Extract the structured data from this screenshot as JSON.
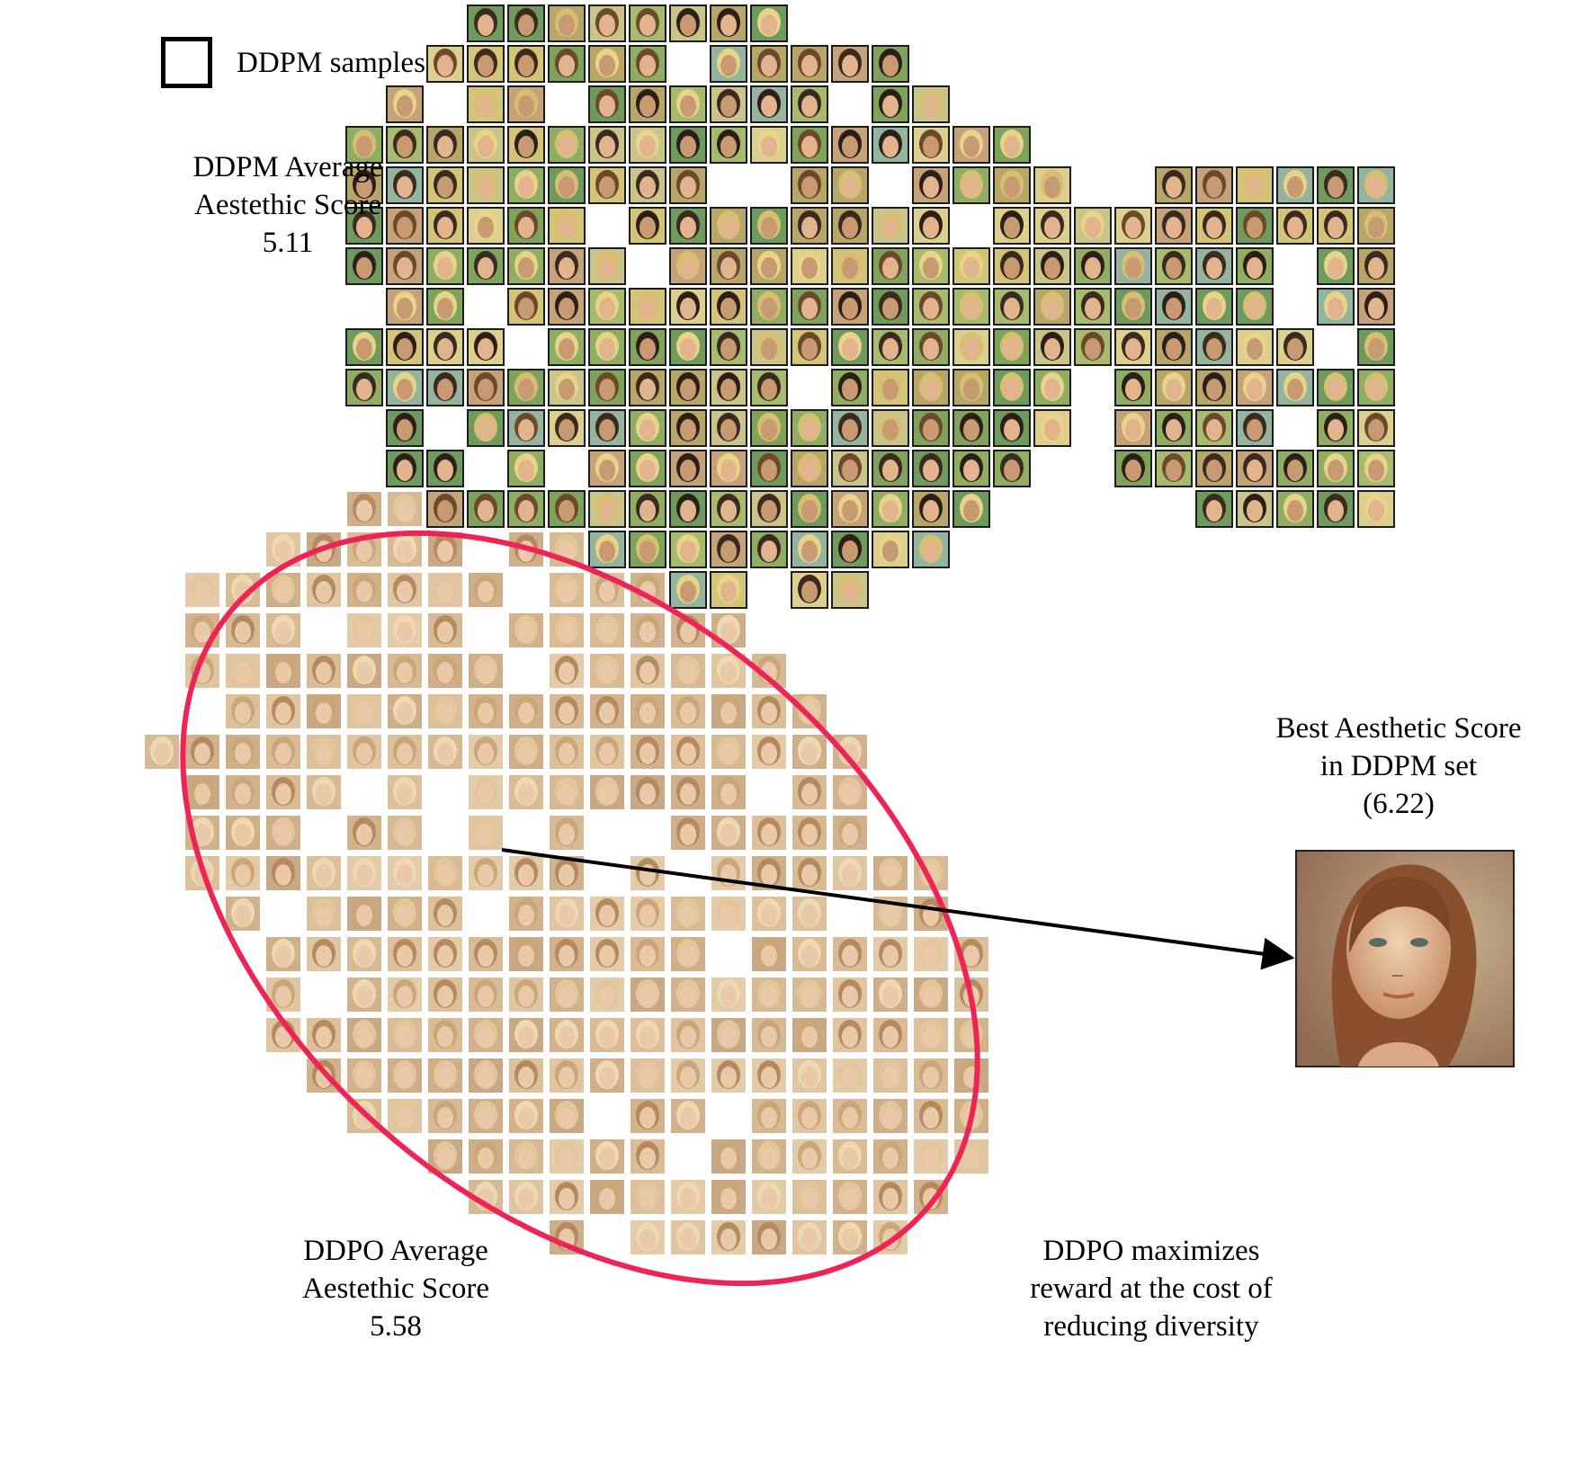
{
  "legend": {
    "label": "DDPM samples"
  },
  "ddpm_average": {
    "line1": "DDPM Average",
    "line2": "Aestethic Score",
    "value": "5.11"
  },
  "best_sample": {
    "line1": "Best Aesthetic Score",
    "line2": "in DDPM set",
    "value": "(6.22)"
  },
  "ddpo_average": {
    "line1": "DDPO Average",
    "line2": "Aestethic Score",
    "value": "5.58"
  },
  "ddpo_note": {
    "line1": "DDPO maximizes",
    "line2": "reward at the cost of",
    "line3": "reducing diversity"
  },
  "colors": {
    "ellipse": "#ee2457",
    "ddpm_border": "#1c1c1c",
    "ddpo_border": "#ffffff",
    "arrow": "#000000",
    "ddpm_tones": [
      "#c9c48a",
      "#a7bb6f",
      "#8fae63",
      "#d4c47a",
      "#b8a56a",
      "#6f9a5e",
      "#94b4a0",
      "#c6a27a",
      "#7fa35a",
      "#ddd08e"
    ],
    "ddpo_tones": [
      "#d9bb95",
      "#d2b28d",
      "#e0c5a3",
      "#cfae8a",
      "#dcc09c",
      "#c8a885",
      "#e3cba9",
      "#d6b995"
    ]
  }
}
